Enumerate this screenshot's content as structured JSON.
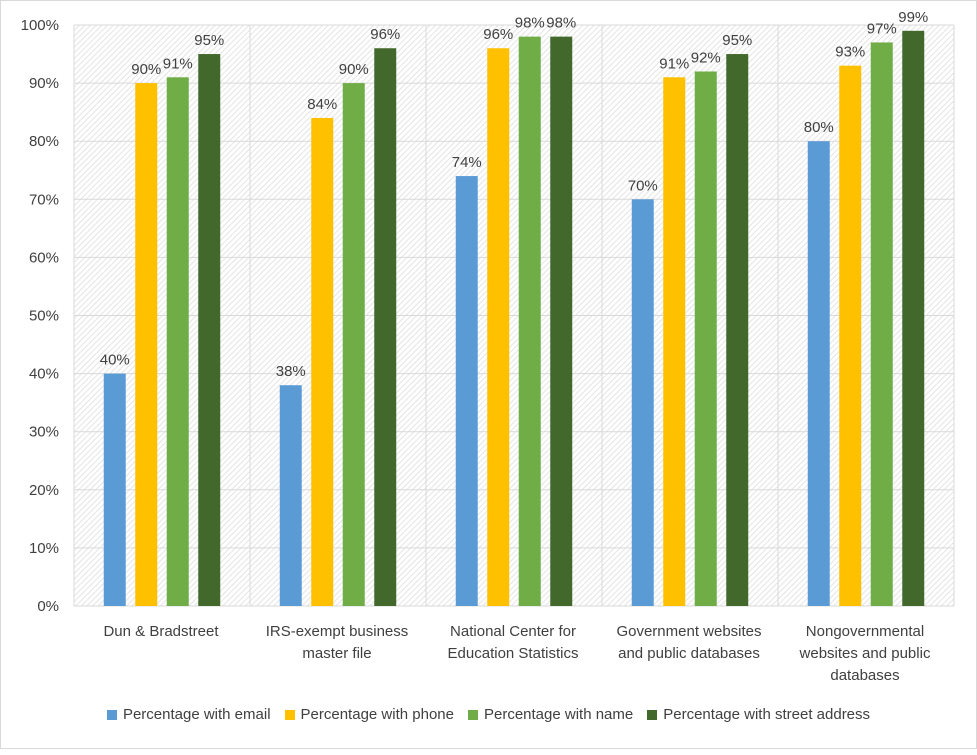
{
  "chart_data": {
    "type": "bar",
    "title": "",
    "xlabel": "",
    "ylabel": "",
    "ylim": [
      0,
      100
    ],
    "y_ticks": [
      "0%",
      "10%",
      "20%",
      "30%",
      "40%",
      "50%",
      "60%",
      "70%",
      "80%",
      "90%",
      "100%"
    ],
    "grid": true,
    "legend_position": "bottom",
    "categories": [
      "Dun & Bradstreet",
      "IRS-exempt business master file",
      "National Center for Education Statistics",
      "Government websites and public databases",
      "Nongovernmental websites and public databases"
    ],
    "series": [
      {
        "name": "Percentage with email",
        "color": "#5b9bd5",
        "values": [
          40,
          38,
          74,
          70,
          80
        ],
        "labels": [
          "40%",
          "38%",
          "74%",
          "70%",
          "80%"
        ]
      },
      {
        "name": "Percentage with phone",
        "color": "#ffc000",
        "values": [
          90,
          84,
          96,
          91,
          93
        ],
        "labels": [
          "90%",
          "84%",
          "96%",
          "91%",
          "93%"
        ]
      },
      {
        "name": "Percentage with name",
        "color": "#70ad47",
        "values": [
          91,
          90,
          98,
          92,
          97
        ],
        "labels": [
          "91%",
          "90%",
          "98%",
          "92%",
          "97%"
        ]
      },
      {
        "name": "Percentage with street address",
        "color": "#43682b",
        "values": [
          95,
          96,
          98,
          95,
          99
        ],
        "labels": [
          "95%",
          "96%",
          "98%",
          "95%",
          "99%"
        ]
      }
    ]
  }
}
